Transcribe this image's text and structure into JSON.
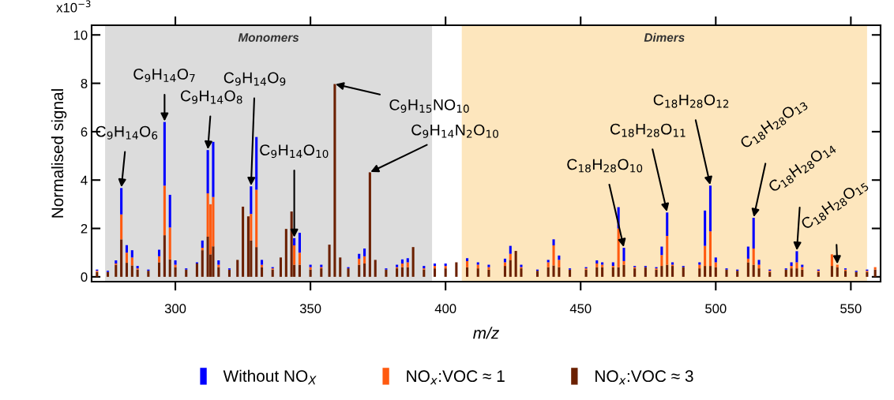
{
  "chart_data": {
    "type": "bar",
    "stacked": true,
    "xlabel": "m/z",
    "ylabel": "Normalised signal",
    "x": [
      271,
      275,
      278,
      280,
      282,
      284,
      286,
      290,
      294,
      296,
      298,
      300,
      304,
      308,
      310,
      312,
      313,
      314,
      316,
      320,
      323,
      325,
      327,
      328,
      330,
      332,
      336,
      339,
      341,
      343,
      344,
      346,
      350,
      354,
      357,
      359,
      361,
      364,
      368,
      370,
      372,
      374,
      378,
      382,
      384,
      386,
      388,
      392,
      396,
      400,
      404,
      408,
      412,
      416,
      422,
      424,
      426,
      428,
      434,
      438,
      440,
      442,
      446,
      452,
      456,
      458,
      462,
      464,
      466,
      470,
      474,
      478,
      480,
      482,
      484,
      488,
      494,
      496,
      498,
      500,
      504,
      508,
      512,
      514,
      516,
      520,
      526,
      528,
      530,
      532,
      538,
      543,
      545,
      548,
      552,
      556,
      559
    ],
    "series": [
      {
        "name": "NO$_{x}$:VOC ≈ 3",
        "color": "#6b2000",
        "values": [
          0.2,
          0.2,
          0.5,
          1.55,
          0.58,
          0.47,
          0.3,
          0.25,
          0.6,
          1.72,
          0.72,
          0.4,
          0.3,
          0.55,
          1.1,
          1.66,
          0.93,
          1.26,
          0.4,
          0.3,
          0.7,
          2.9,
          2.5,
          1.5,
          1.23,
          0.4,
          0.3,
          0.8,
          1.98,
          2.7,
          0.5,
          0.5,
          0.3,
          0.35,
          1.33,
          7.97,
          0.8,
          0.35,
          0.5,
          0.55,
          4.32,
          0.7,
          0.3,
          0.35,
          0.4,
          0.4,
          1.23,
          0.3,
          0.35,
          0.35,
          0.6,
          0.4,
          0.35,
          0.3,
          0.45,
          0.7,
          1.07,
          0.35,
          0.25,
          0.4,
          0.47,
          0.4,
          0.3,
          0.3,
          0.4,
          0.4,
          0.4,
          0.4,
          0.5,
          0.35,
          0.4,
          0.3,
          0.45,
          0.5,
          0.45,
          0.4,
          0.35,
          0.45,
          0.45,
          0.4,
          0.3,
          0.25,
          0.6,
          0.5,
          0.35,
          0.2,
          0.3,
          0.35,
          0.35,
          0.3,
          0.2,
          0.45,
          0.4,
          0.25,
          0.2,
          0.2,
          0.3
        ]
      },
      {
        "name": "NO$_{x}$:VOC ≈ 1",
        "color": "#ff5a10",
        "values": [
          0.05,
          null,
          0.05,
          1.03,
          0.42,
          0.33,
          0.05,
          null,
          0.25,
          2.05,
          1.32,
          0.1,
          null,
          null,
          0.1,
          1.79,
          2.07,
          2.04,
          0.1,
          null,
          null,
          null,
          null,
          1.1,
          2.37,
          0.1,
          0.05,
          null,
          null,
          null,
          0.8,
          0.5,
          0.1,
          0.05,
          null,
          null,
          null,
          null,
          0.25,
          0.3,
          null,
          null,
          null,
          0.05,
          0.15,
          0.2,
          null,
          0.05,
          0.1,
          0.1,
          null,
          0.25,
          0.15,
          0.1,
          0.15,
          0.25,
          null,
          0.05,
          null,
          0.2,
          0.83,
          0.3,
          null,
          0.05,
          0.15,
          0.1,
          0.05,
          1.6,
          0.15,
          0.05,
          null,
          0.05,
          0.45,
          1.19,
          0.05,
          null,
          0.15,
          0.83,
          1.43,
          0.2,
          null,
          null,
          0.15,
          0.67,
          0.15,
          0.05,
          null,
          0.1,
          0.25,
          0.1,
          0.05,
          0.48,
          0.1,
          0.05,
          null,
          0.05,
          0.1
        ]
      },
      {
        "name": "Without NO$_{X}$",
        "color": "#0000ff",
        "values": [
          0.05,
          0.05,
          0.13,
          1.09,
          0.31,
          0.3,
          0.1,
          0.05,
          0.27,
          2.63,
          1.35,
          0.18,
          0.05,
          0.05,
          0.3,
          1.79,
          null,
          2.28,
          0.18,
          0.05,
          null,
          null,
          null,
          1.14,
          2.18,
          0.2,
          0.05,
          null,
          null,
          null,
          0.3,
          0.82,
          0.1,
          0.1,
          null,
          null,
          null,
          0.05,
          0.2,
          0.32,
          null,
          null,
          0.05,
          0.1,
          0.17,
          0.17,
          null,
          0.1,
          0.1,
          0.1,
          null,
          0.12,
          0.1,
          0.1,
          0.15,
          0.33,
          null,
          0.1,
          0.05,
          0.1,
          0.25,
          0.18,
          0.05,
          0.05,
          0.13,
          0.1,
          0.15,
          0.88,
          0.55,
          0.05,
          0.05,
          0.05,
          0.35,
          0.97,
          0.1,
          0.05,
          0.1,
          1.46,
          1.89,
          0.2,
          0.05,
          0.05,
          0.5,
          1.27,
          0.2,
          0.05,
          0.05,
          0.15,
          0.46,
          0.1,
          0.05,
          null,
          null,
          0.05,
          0.05,
          0.05,
          null
        ]
      }
    ],
    "xlim": [
      269,
      561
    ],
    "xticks": [
      300,
      350,
      400,
      450,
      500,
      550
    ],
    "ylim": [
      -0.2,
      10.4
    ],
    "yticks": [
      0,
      2,
      4,
      6,
      8,
      10
    ],
    "bands": [
      {
        "axis": "x",
        "from": 274,
        "to": 395,
        "label": "Monomers",
        "color": "#dcdcdc"
      },
      {
        "axis": "x",
        "from": 406,
        "to": 556,
        "label": "Dimers",
        "color": "#fde6bd"
      }
    ],
    "annotations": [
      "x10$^{−3}$",
      {
        "text": "C$_{9}$H$_{14}$O$_{6}$",
        "x": 280,
        "y": 3.67
      },
      {
        "text": "C$_{9}$H$_{14}$O$_{7}$",
        "x": 296,
        "y": 6.4
      },
      {
        "text": "C$_{9}$H$_{14}$O$_{8}$",
        "x": 312,
        "y": 5.24
      },
      {
        "text": "C$_{9}$H$_{14}$O$_{9}$",
        "x": 328,
        "y": 3.74
      },
      {
        "text": "C$_{9}$H$_{14}$O$_{10}$",
        "x": 344,
        "y": 1.6
      },
      {
        "text": "C$_{9}$H$_{15}$NO$_{10}$",
        "x": 359,
        "y": 7.97
      },
      {
        "text": "C$_{9}$H$_{14}$N$_{2}$O$_{10}$",
        "x": 372,
        "y": 4.32
      },
      {
        "text": "C$_{18}$H$_{28}$O$_{10}$",
        "x": 466,
        "y": 1.2
      },
      {
        "text": "C$_{18}$H$_{28}$O$_{11}$",
        "x": 482,
        "y": 2.66
      },
      {
        "text": "C$_{18}$H$_{28}$O$_{12}$",
        "x": 498,
        "y": 3.77
      },
      {
        "text": "C$_{18}$H$_{28}$O$_{13}$",
        "x": 514,
        "y": 2.44
      },
      {
        "text": "C$_{18}$H$_{28}$O$_{14}$",
        "x": 530,
        "y": 1.06
      },
      {
        "text": "C$_{18}$H$_{28}$O$_{15}$",
        "x": 545,
        "y": 0.5
      }
    ],
    "legend": "bottom"
  }
}
